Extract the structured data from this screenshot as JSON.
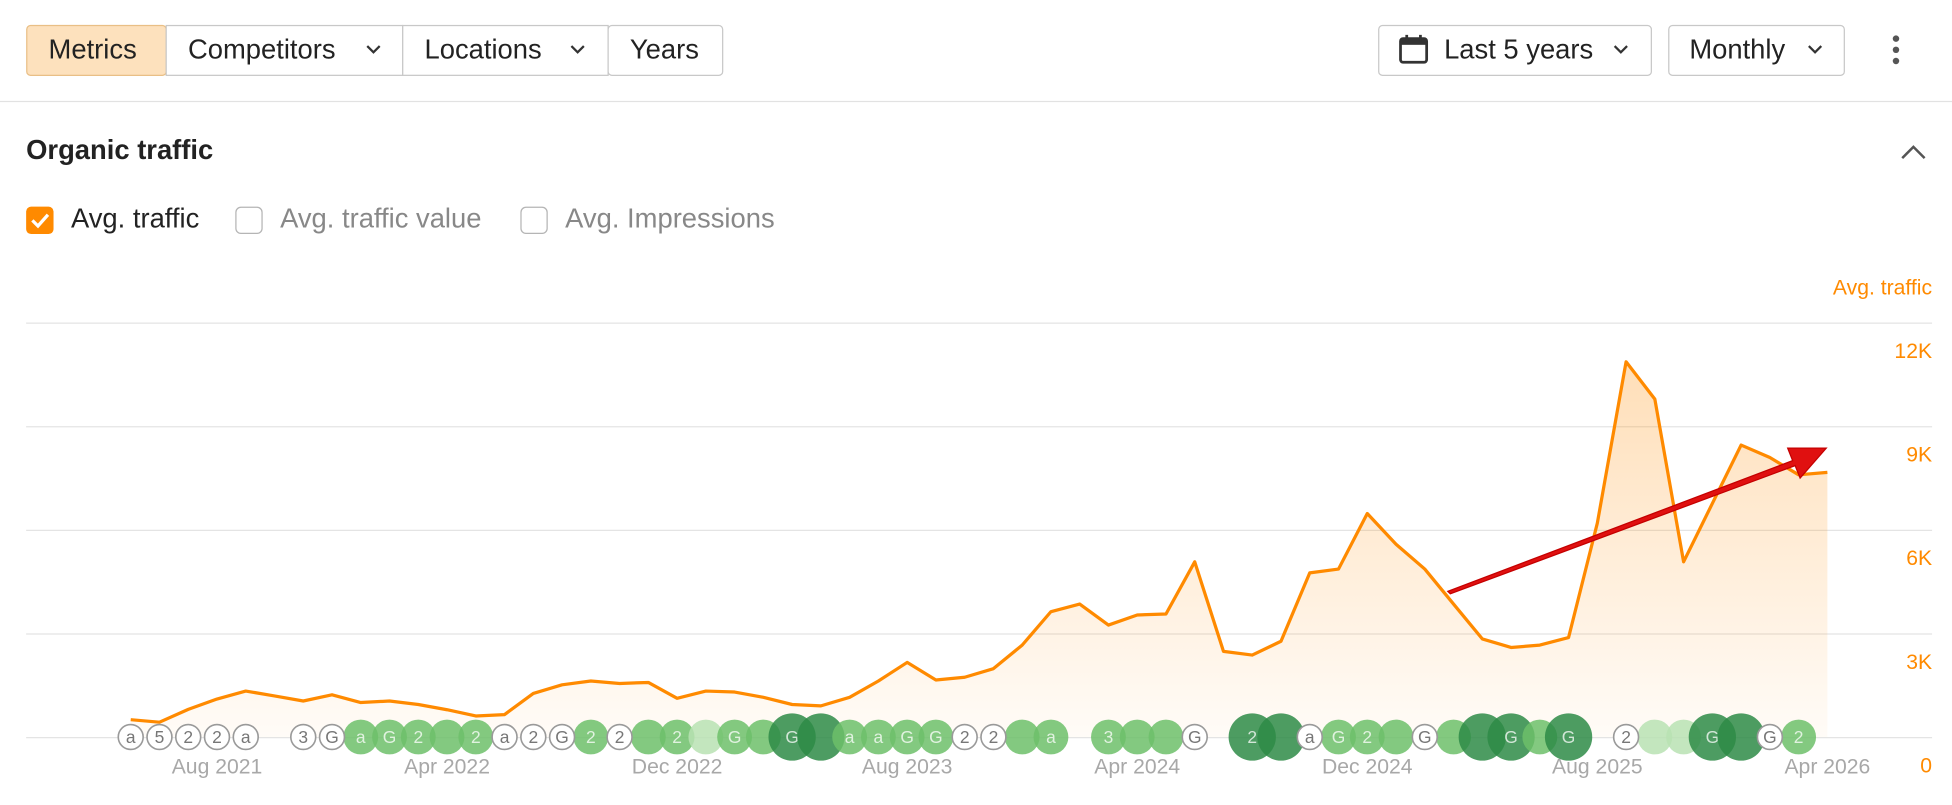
{
  "toolbar": {
    "tabs": [
      "Metrics",
      "Competitors",
      "Locations",
      "Years"
    ],
    "date_range": "Last 5 years",
    "interval": "Monthly"
  },
  "section": {
    "title": "Organic traffic",
    "checkboxes": [
      {
        "label": "Avg. traffic",
        "checked": true
      },
      {
        "label": "Avg. traffic value",
        "checked": false
      },
      {
        "label": "Avg. Impressions",
        "checked": false
      }
    ]
  },
  "chart_data": {
    "type": "line",
    "y_label": "Avg. traffic",
    "color": "#ff8a00",
    "x": [
      "May 2021",
      "Jun 2021",
      "Jul 2021",
      "Aug 2021",
      "Sep 2021",
      "Oct 2021",
      "Nov 2021",
      "Dec 2021",
      "Jan 2022",
      "Feb 2022",
      "Mar 2022",
      "Apr 2022",
      "May 2022",
      "Jun 2022",
      "Jul 2022",
      "Aug 2022",
      "Sep 2022",
      "Oct 2022",
      "Nov 2022",
      "Dec 2022",
      "Jan 2023",
      "Feb 2023",
      "Mar 2023",
      "Apr 2023",
      "May 2023",
      "Jun 2023",
      "Jul 2023",
      "Aug 2023",
      "Sep 2023",
      "Oct 2023",
      "Nov 2023",
      "Dec 2023",
      "Jan 2024",
      "Feb 2024",
      "Mar 2024",
      "Apr 2024",
      "May 2024",
      "Jun 2024",
      "Jul 2024",
      "Aug 2024",
      "Sep 2024",
      "Oct 2024",
      "Nov 2024",
      "Dec 2024",
      "Jan 2025",
      "Feb 2025",
      "Mar 2025",
      "Apr 2025",
      "May 2025",
      "Jun 2025",
      "Jul 2025",
      "Aug 2025",
      "Sep 2025",
      "Oct 2025",
      "Nov 2025",
      "Dec 2025",
      "Jan 2026",
      "Feb 2026",
      "Mar 2026",
      "Apr 2026"
    ],
    "values": [
      500,
      430,
      800,
      1100,
      1330,
      1190,
      1040,
      1220,
      1000,
      1040,
      940,
      790,
      610,
      650,
      1260,
      1510,
      1620,
      1550,
      1580,
      1120,
      1330,
      1300,
      1150,
      940,
      900,
      1150,
      1620,
      2160,
      1650,
      1730,
      1980,
      2660,
      3630,
      3850,
      3240,
      3530,
      3560,
      5070,
      2480,
      2370,
      2770,
      4750,
      4860,
      6470,
      5580,
      4860,
      3850,
      2840,
      2590,
      2660,
      2880,
      6190,
      10860,
      9780,
      5070,
      6760,
      8450,
      8090,
      7590,
      7660
    ],
    "ylim": [
      0,
      12000
    ],
    "yticks": [
      0,
      {
        "value": 3000,
        "label": "3K"
      },
      {
        "value": 6000,
        "label": "6K"
      },
      {
        "value": 9000,
        "label": "9K"
      },
      {
        "value": 12000,
        "label": "12K"
      }
    ],
    "xticks": [
      "Aug 2021",
      "Apr 2022",
      "Dec 2022",
      "Aug 2023",
      "Apr 2024",
      "Dec 2024",
      "Aug 2025",
      "Apr 2026"
    ],
    "grid": true,
    "events": [
      {
        "x": "May 2021",
        "label": "a"
      },
      {
        "x": "Jun 2021",
        "label": "5"
      },
      {
        "x": "Jul 2021",
        "label": "2"
      },
      {
        "x": "Aug 2021",
        "label": "2"
      },
      {
        "x": "Sep 2021",
        "label": "a"
      },
      {
        "x": "Nov 2021",
        "label": "3"
      },
      {
        "x": "Dec 2021",
        "label": "G"
      },
      {
        "x": "Jun 2022",
        "label": "a"
      },
      {
        "x": "Jul 2022",
        "label": "2"
      },
      {
        "x": "Aug 2022",
        "label": "G"
      },
      {
        "x": "Oct 2022",
        "label": "2"
      },
      {
        "x": "Oct 2023",
        "label": "2"
      },
      {
        "x": "Nov 2023",
        "label": "2"
      },
      {
        "x": "Jun 2024",
        "label": "G"
      },
      {
        "x": "Oct 2024",
        "label": "a"
      },
      {
        "x": "Feb 2025",
        "label": "G"
      },
      {
        "x": "Sep 2025",
        "label": "2"
      },
      {
        "x": "Feb 2026",
        "label": "G"
      }
    ],
    "updates": [
      {
        "x": "Jan 2022",
        "label": "a",
        "color": "#6dbf6a"
      },
      {
        "x": "Feb 2022",
        "label": "G",
        "color": "#6dbf6a"
      },
      {
        "x": "Mar 2022",
        "label": "2",
        "color": "#6dbf6a"
      },
      {
        "x": "Apr 2022",
        "color": "#6dbf6a"
      },
      {
        "x": "May 2022",
        "label": "2",
        "color": "#6dbf6a"
      },
      {
        "x": "Sep 2022",
        "label": "2",
        "color": "#6dbf6a"
      },
      {
        "x": "Nov 2022",
        "color": "#6dbf6a"
      },
      {
        "x": "Dec 2022",
        "label": "2",
        "color": "#6dbf6a"
      },
      {
        "x": "Jan 2023",
        "color": "#b9e2b3"
      },
      {
        "x": "Feb 2023",
        "label": "G",
        "color": "#6dbf6a"
      },
      {
        "x": "Mar 2023",
        "color": "#6dbf6a"
      },
      {
        "x": "Apr 2023",
        "label": "G",
        "color": "#2e8b47"
      },
      {
        "x": "May 2023",
        "color": "#2e8b47"
      },
      {
        "x": "Jun 2023",
        "label": "a",
        "color": "#6dbf6a"
      },
      {
        "x": "Jul 2023",
        "label": "a",
        "color": "#6dbf6a"
      },
      {
        "x": "Aug 2023",
        "label": "G",
        "color": "#6dbf6a"
      },
      {
        "x": "Sep 2023",
        "label": "G",
        "color": "#6dbf6a"
      },
      {
        "x": "Dec 2023",
        "color": "#6dbf6a"
      },
      {
        "x": "Jan 2024",
        "label": "a",
        "color": "#6dbf6a"
      },
      {
        "x": "Mar 2024",
        "label": "3",
        "color": "#6dbf6a"
      },
      {
        "x": "Apr 2024",
        "color": "#6dbf6a"
      },
      {
        "x": "May 2024",
        "color": "#6dbf6a"
      },
      {
        "x": "Aug 2024",
        "label": "2",
        "color": "#2e8b47"
      },
      {
        "x": "Sep 2024",
        "color": "#2e8b47"
      },
      {
        "x": "Nov 2024",
        "label": "G",
        "color": "#6dbf6a"
      },
      {
        "x": "Dec 2024",
        "label": "2",
        "color": "#6dbf6a"
      },
      {
        "x": "Jan 2025",
        "color": "#6dbf6a"
      },
      {
        "x": "Mar 2025",
        "color": "#6dbf6a"
      },
      {
        "x": "Apr 2025",
        "color": "#2e8b47"
      },
      {
        "x": "May 2025",
        "label": "G",
        "color": "#2e8b47"
      },
      {
        "x": "Jun 2025",
        "color": "#6dbf6a"
      },
      {
        "x": "Jul 2025",
        "label": "G",
        "color": "#2e8b47"
      },
      {
        "x": "Oct 2025",
        "color": "#b9e2b3"
      },
      {
        "x": "Nov 2025",
        "color": "#b9e2b3"
      },
      {
        "x": "Dec 2025",
        "label": "G",
        "color": "#2e8b47"
      },
      {
        "x": "Jan 2026",
        "color": "#2e8b47"
      },
      {
        "x": "Mar 2026",
        "label": "2",
        "color": "#6dbf6a"
      }
    ]
  }
}
